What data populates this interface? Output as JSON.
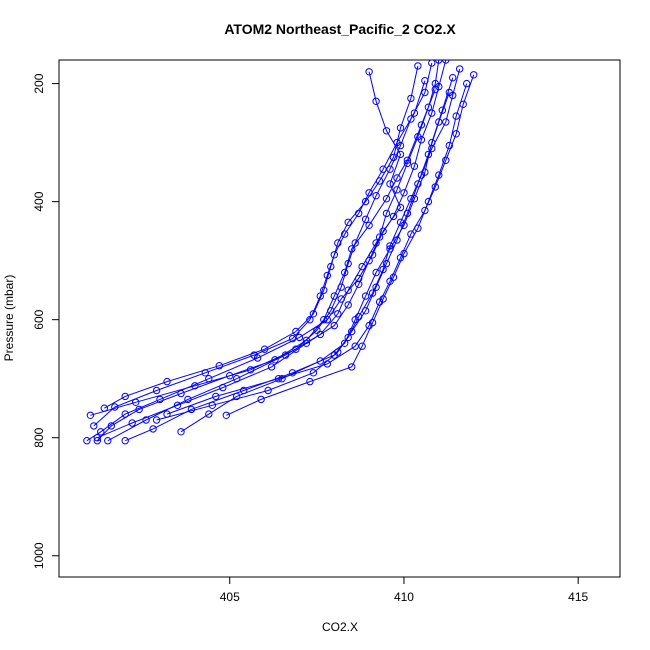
{
  "chart_data": {
    "type": "line",
    "title": "ATOM2 Northeast_Pacific_2 CO2.X",
    "xlabel": "CO2.X",
    "ylabel": "Pressure (mbar)",
    "xlim": [
      400.1,
      416.2
    ],
    "ylim": [
      1036,
      160
    ],
    "y_inverted": true,
    "x_ticks": [
      405,
      410,
      415
    ],
    "y_ticks": [
      200,
      400,
      600,
      800,
      1000
    ],
    "grid": false,
    "legend": "none",
    "marker": "open-circle",
    "color": "#0000ff",
    "series": [
      {
        "points": [
          [
            411.0,
            160
          ],
          [
            410.9,
            200
          ],
          [
            410.7,
            240
          ],
          [
            410.4,
            290
          ],
          [
            410.1,
            335
          ],
          [
            409.8,
            380
          ],
          [
            409.5,
            420
          ],
          [
            409.3,
            460
          ],
          [
            409.0,
            500
          ],
          [
            408.7,
            540
          ],
          [
            408.4,
            575
          ],
          [
            408.0,
            610
          ],
          [
            407.2,
            640
          ],
          [
            406.2,
            680
          ],
          [
            404.8,
            715
          ],
          [
            403.5,
            745
          ],
          [
            402.2,
            775
          ],
          [
            401.2,
            800
          ]
        ]
      },
      {
        "points": [
          [
            411.2,
            160
          ],
          [
            411.0,
            205
          ],
          [
            410.8,
            250
          ],
          [
            410.5,
            295
          ],
          [
            410.3,
            340
          ],
          [
            410.0,
            385
          ],
          [
            409.7,
            425
          ],
          [
            409.2,
            470
          ],
          [
            408.8,
            510
          ],
          [
            408.4,
            550
          ],
          [
            408.1,
            590
          ],
          [
            407.6,
            625
          ],
          [
            406.6,
            660
          ],
          [
            405.2,
            700
          ],
          [
            403.8,
            735
          ],
          [
            402.6,
            770
          ],
          [
            401.5,
            805
          ]
        ]
      },
      {
        "points": [
          [
            409.0,
            180
          ],
          [
            409.2,
            230
          ],
          [
            409.5,
            280
          ],
          [
            409.9,
            320
          ],
          [
            409.6,
            370
          ],
          [
            409.9,
            410
          ],
          [
            409.4,
            450
          ],
          [
            409.1,
            490
          ],
          [
            408.7,
            530
          ],
          [
            408.2,
            565
          ],
          [
            407.8,
            600
          ],
          [
            407.0,
            630
          ],
          [
            405.8,
            665
          ],
          [
            404.4,
            700
          ],
          [
            403.0,
            735
          ],
          [
            402.0,
            760
          ],
          [
            401.3,
            790
          ],
          [
            400.9,
            805
          ]
        ]
      },
      {
        "points": [
          [
            411.6,
            175
          ],
          [
            411.4,
            220
          ],
          [
            411.2,
            265
          ],
          [
            410.8,
            310
          ],
          [
            410.5,
            355
          ],
          [
            410.2,
            395
          ],
          [
            409.9,
            435
          ],
          [
            409.6,
            475
          ],
          [
            409.4,
            515
          ],
          [
            409.1,
            555
          ],
          [
            408.7,
            595
          ],
          [
            408.4,
            630
          ],
          [
            408.0,
            660
          ],
          [
            406.8,
            690
          ],
          [
            405.4,
            720
          ],
          [
            403.9,
            752
          ],
          [
            402.8,
            785
          ],
          [
            402.0,
            805
          ]
        ]
      },
      {
        "points": [
          [
            410.8,
            165
          ],
          [
            410.6,
            215
          ],
          [
            410.2,
            260
          ],
          [
            409.9,
            305
          ],
          [
            409.6,
            345
          ],
          [
            409.2,
            390
          ],
          [
            408.9,
            430
          ],
          [
            408.6,
            470
          ],
          [
            408.4,
            505
          ],
          [
            408.2,
            545
          ],
          [
            407.9,
            585
          ],
          [
            407.5,
            618
          ],
          [
            406.9,
            650
          ],
          [
            405.6,
            685
          ],
          [
            404.0,
            712
          ],
          [
            402.3,
            740
          ],
          [
            401.0,
            762
          ]
        ]
      },
      {
        "points": [
          [
            412.0,
            185
          ],
          [
            411.7,
            235
          ],
          [
            411.5,
            285
          ],
          [
            411.2,
            330
          ],
          [
            410.9,
            375
          ],
          [
            410.6,
            415
          ],
          [
            410.2,
            455
          ],
          [
            409.9,
            495
          ],
          [
            409.6,
            535
          ],
          [
            409.3,
            570
          ],
          [
            409.0,
            610
          ],
          [
            408.6,
            645
          ],
          [
            407.8,
            675
          ],
          [
            406.4,
            700
          ],
          [
            404.6,
            730
          ],
          [
            403.2,
            760
          ]
        ]
      },
      {
        "points": [
          [
            410.4,
            170
          ],
          [
            410.2,
            225
          ],
          [
            409.9,
            275
          ],
          [
            409.7,
            325
          ],
          [
            409.3,
            365
          ],
          [
            408.9,
            400
          ],
          [
            408.4,
            435
          ],
          [
            408.1,
            470
          ],
          [
            407.9,
            510
          ],
          [
            407.7,
            550
          ],
          [
            407.4,
            590
          ],
          [
            406.9,
            620
          ],
          [
            406.0,
            650
          ],
          [
            404.7,
            678
          ],
          [
            403.2,
            705
          ],
          [
            402.0,
            730
          ],
          [
            401.4,
            750
          ]
        ]
      },
      {
        "points": [
          [
            411.4,
            190
          ],
          [
            411.1,
            245
          ],
          [
            410.8,
            300
          ],
          [
            410.6,
            350
          ],
          [
            410.3,
            395
          ],
          [
            410.0,
            440
          ],
          [
            409.6,
            480
          ],
          [
            409.2,
            520
          ],
          [
            408.9,
            560
          ],
          [
            408.6,
            600
          ],
          [
            408.3,
            640
          ],
          [
            407.6,
            670
          ],
          [
            406.5,
            700
          ],
          [
            405.2,
            730
          ],
          [
            404.4,
            760
          ],
          [
            403.6,
            790
          ]
        ]
      },
      {
        "points": [
          [
            410.6,
            195
          ],
          [
            410.3,
            250
          ],
          [
            409.8,
            300
          ],
          [
            409.4,
            345
          ],
          [
            409.0,
            385
          ],
          [
            408.7,
            420
          ],
          [
            408.3,
            455
          ],
          [
            408.0,
            490
          ],
          [
            407.8,
            525
          ],
          [
            407.6,
            560
          ],
          [
            407.3,
            600
          ],
          [
            406.8,
            632
          ],
          [
            405.7,
            660
          ],
          [
            404.3,
            690
          ],
          [
            402.9,
            720
          ],
          [
            401.7,
            748
          ],
          [
            401.1,
            780
          ]
        ]
      },
      {
        "points": [
          [
            411.8,
            200
          ],
          [
            411.5,
            255
          ],
          [
            411.3,
            305
          ],
          [
            411.0,
            355
          ],
          [
            410.7,
            400
          ],
          [
            410.4,
            445
          ],
          [
            410.0,
            488
          ],
          [
            409.7,
            528
          ],
          [
            409.4,
            565
          ],
          [
            409.1,
            605
          ],
          [
            408.8,
            645
          ],
          [
            408.5,
            680
          ],
          [
            407.3,
            705
          ],
          [
            405.9,
            735
          ],
          [
            404.9,
            762
          ]
        ]
      },
      {
        "points": [
          [
            410.9,
            210
          ],
          [
            410.5,
            270
          ],
          [
            410.1,
            330
          ],
          [
            409.8,
            360
          ],
          [
            409.5,
            395
          ],
          [
            409.0,
            440
          ],
          [
            408.5,
            480
          ],
          [
            408.3,
            520
          ],
          [
            408.0,
            560
          ],
          [
            407.7,
            600
          ],
          [
            407.2,
            635
          ],
          [
            406.3,
            668
          ],
          [
            405.0,
            695
          ],
          [
            403.6,
            725
          ],
          [
            402.4,
            752
          ],
          [
            401.6,
            780
          ],
          [
            401.2,
            805
          ]
        ]
      },
      {
        "points": [
          [
            411.3,
            215
          ],
          [
            411.0,
            265
          ],
          [
            410.7,
            320
          ],
          [
            410.4,
            370
          ],
          [
            410.1,
            420
          ],
          [
            409.8,
            465
          ],
          [
            409.5,
            505
          ],
          [
            409.2,
            545
          ],
          [
            408.9,
            585
          ],
          [
            408.5,
            620
          ],
          [
            408.1,
            655
          ],
          [
            407.4,
            690
          ],
          [
            406.1,
            720
          ],
          [
            404.5,
            745
          ],
          [
            402.9,
            770
          ]
        ]
      }
    ]
  }
}
